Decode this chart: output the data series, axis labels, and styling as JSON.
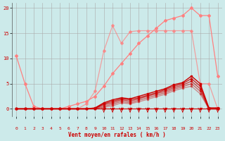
{
  "x": [
    0,
    1,
    2,
    3,
    4,
    5,
    6,
    7,
    8,
    9,
    10,
    11,
    12,
    13,
    14,
    15,
    16,
    17,
    18,
    19,
    20,
    21,
    22,
    23
  ],
  "background_color": "#cceaea",
  "grid_color": "#aaaaaa",
  "xlabel": "Vent moyen/en rafales ( km/h )",
  "ylim": [
    -1.5,
    21
  ],
  "xlim": [
    -0.5,
    23.5
  ],
  "yticks": [
    0,
    5,
    10,
    15,
    20
  ],
  "xticks": [
    0,
    1,
    2,
    3,
    4,
    5,
    6,
    7,
    8,
    9,
    10,
    11,
    12,
    13,
    14,
    15,
    16,
    17,
    18,
    19,
    20,
    21,
    22,
    23
  ],
  "series": [
    {
      "y": [
        10.5,
        5.0,
        0.5,
        0.0,
        0.0,
        0.0,
        0.5,
        1.0,
        1.5,
        2.5,
        4.5,
        7.0,
        9.0,
        11.0,
        13.0,
        14.5,
        16.0,
        17.5,
        18.0,
        18.5,
        20.0,
        18.5,
        18.5,
        6.5
      ],
      "color": "#ff8080",
      "marker": "D",
      "markersize": 2,
      "linewidth": 0.9,
      "alpha": 1.0
    },
    {
      "y": [
        0,
        0,
        0,
        0,
        0,
        0,
        0,
        0,
        1.0,
        3.5,
        11.5,
        16.5,
        13.0,
        15.3,
        15.5,
        15.5,
        15.5,
        15.5,
        15.5,
        15.5,
        15.5,
        5.0,
        5.0,
        0
      ],
      "color": "#ff8080",
      "marker": "D",
      "markersize": 2,
      "linewidth": 0.9,
      "alpha": 0.7
    },
    {
      "y": [
        0,
        0,
        0,
        0,
        0,
        0,
        0,
        0,
        0,
        0.2,
        1.2,
        1.8,
        2.2,
        2.0,
        2.5,
        3.0,
        3.5,
        4.0,
        4.8,
        5.2,
        6.5,
        5.0,
        0.2,
        0.2
      ],
      "color": "#cc0000",
      "marker": "s",
      "markersize": 2,
      "linewidth": 1.0,
      "alpha": 1.0
    },
    {
      "y": [
        0,
        0,
        0,
        0,
        0,
        0,
        0,
        0,
        0,
        0.1,
        1.0,
        1.5,
        2.0,
        1.8,
        2.2,
        2.7,
        3.2,
        3.8,
        4.5,
        5.0,
        6.0,
        4.5,
        0.0,
        0.0
      ],
      "color": "#cc0000",
      "marker": "s",
      "markersize": 2,
      "linewidth": 1.0,
      "alpha": 0.85
    },
    {
      "y": [
        0,
        0,
        0,
        0,
        0,
        0,
        0,
        0,
        0,
        0.1,
        0.8,
        1.2,
        1.8,
        1.5,
        2.0,
        2.5,
        3.0,
        3.5,
        4.2,
        4.7,
        5.5,
        4.0,
        0.0,
        0.0
      ],
      "color": "#cc0000",
      "marker": "s",
      "markersize": 2,
      "linewidth": 1.0,
      "alpha": 0.7
    },
    {
      "y": [
        0,
        0,
        0,
        0,
        0,
        0,
        0,
        0,
        0,
        0.0,
        0.5,
        0.9,
        1.5,
        1.2,
        1.7,
        2.2,
        2.7,
        3.2,
        3.9,
        4.4,
        5.0,
        3.5,
        0.0,
        0.0
      ],
      "color": "#cc0000",
      "marker": "s",
      "markersize": 2,
      "linewidth": 1.0,
      "alpha": 0.55
    },
    {
      "y": [
        0,
        0,
        0,
        0,
        0,
        0,
        0,
        0,
        0,
        0.0,
        0.3,
        0.6,
        1.2,
        1.0,
        1.4,
        1.9,
        2.4,
        2.9,
        3.6,
        4.1,
        4.5,
        3.0,
        0.0,
        0.0
      ],
      "color": "#cc0000",
      "marker": "s",
      "markersize": 2,
      "linewidth": 1.0,
      "alpha": 0.4
    },
    {
      "y": [
        0,
        0,
        0,
        0,
        0,
        0,
        0,
        0,
        0,
        0,
        0,
        0,
        0,
        0,
        0,
        0,
        0,
        0,
        0,
        0,
        0,
        0,
        0,
        0
      ],
      "color": "#cc0000",
      "marker": "s",
      "markersize": 2,
      "linewidth": 0.8,
      "alpha": 1.0
    }
  ],
  "arrows_x": [
    10,
    11,
    12,
    13,
    14,
    15,
    16,
    17,
    18,
    19,
    20,
    21,
    22,
    23
  ],
  "ytick_labels": [
    "0",
    "5",
    "10",
    "15",
    "20"
  ]
}
